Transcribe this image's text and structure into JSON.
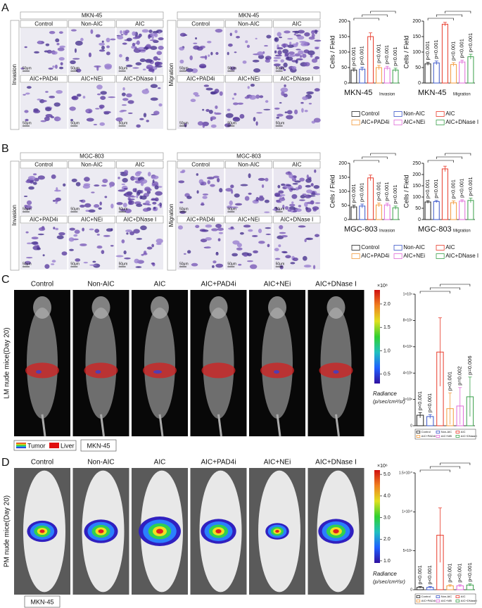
{
  "labels": {
    "groups": [
      "Control",
      "Non-AIC",
      "AIC",
      "AIC+PAD4i",
      "AIC+NEi",
      "AIC+DNase I"
    ],
    "assays": [
      "Invasion",
      "Migration"
    ],
    "scale_bar": "50μm",
    "radiance": "Radiance",
    "radiance_unit": "(p/sec/cm²/sr)"
  },
  "panels": [
    {
      "letter": "A",
      "cell_line": "MKN-45"
    },
    {
      "letter": "B",
      "cell_line": "MGC-803"
    },
    {
      "letter": "C",
      "model": "LM nude mice(Day 20)",
      "cell_line": "MKN-45",
      "tumor": "Tumor",
      "liver": "Liver",
      "colorbar": {
        "scale": "×10⁸",
        "lim": [
          0.3,
          2.3
        ],
        "ticks": [
          0.5,
          {
            "value": 1,
            "label": "1.0"
          },
          1.5,
          {
            "value": 2,
            "label": "2.0"
          }
        ]
      }
    },
    {
      "letter": "D",
      "model": "PM nude mice(Day 20)",
      "cell_line": "MKN-45",
      "colorbar": {
        "scale": "×10⁶",
        "lim": [
          0.9,
          5.2
        ],
        "ticks": [
          {
            "value": 1,
            "label": "1.0"
          },
          {
            "value": 2,
            "label": "2.0"
          },
          {
            "value": 3,
            "label": "3.0"
          },
          {
            "value": 4,
            "label": "4.0"
          },
          {
            "value": 5,
            "label": "5.0"
          }
        ]
      }
    }
  ],
  "chart_data": [
    {
      "type": "bar",
      "ylabel": "Cells / Field",
      "xlabel": "MKN-45",
      "subtitle": "Invasion",
      "categories": [
        "Control",
        "Non-AIC",
        "AIC",
        "AIC+PAD4i",
        "AIC+NEi",
        "AIC+DNase I"
      ],
      "colors": [
        "#222222",
        "#3a55c8",
        "#e83a2a",
        "#f39a3c",
        "#e06ad8",
        "#3aa04a"
      ],
      "values": [
        42,
        45,
        150,
        50,
        48,
        42
      ],
      "errors": [
        6,
        6,
        12,
        7,
        6,
        6
      ],
      "p_labels": [
        "p<0.001",
        "p<0.001",
        null,
        "p<0.001",
        "p<0.001",
        "p<0.001"
      ],
      "ylim": [
        0,
        200
      ],
      "yticks": [
        0,
        50,
        100,
        150,
        200
      ]
    },
    {
      "type": "bar",
      "ylabel": "Cells / Field",
      "xlabel": "MKN-45",
      "subtitle": "Migration",
      "categories": [
        "Control",
        "Non-AIC",
        "AIC",
        "AIC+PAD4i",
        "AIC+NEi",
        "AIC+DNase I"
      ],
      "colors": [
        "#222222",
        "#3a55c8",
        "#e83a2a",
        "#f39a3c",
        "#e06ad8",
        "#3aa04a"
      ],
      "values": [
        62,
        65,
        190,
        60,
        68,
        85
      ],
      "errors": [
        5,
        6,
        6,
        6,
        6,
        8
      ],
      "p_labels": [
        "p<0.001",
        "p<0.001",
        null,
        "p<0.001",
        "p<0.001",
        "p<0.001"
      ],
      "ylim": [
        0,
        200
      ],
      "yticks": [
        0,
        50,
        100,
        150,
        200
      ]
    },
    {
      "type": "bar",
      "ylabel": "Cells / Field",
      "xlabel": "MGC-803",
      "subtitle": "Invasion",
      "categories": [
        "Control",
        "Non-AIC",
        "AIC",
        "AIC+PAD4i",
        "AIC+NEi",
        "AIC+DNase I"
      ],
      "colors": [
        "#222222",
        "#3a55c8",
        "#e83a2a",
        "#f39a3c",
        "#e06ad8",
        "#3aa04a"
      ],
      "values": [
        45,
        48,
        148,
        52,
        52,
        42
      ],
      "errors": [
        6,
        7,
        10,
        7,
        6,
        6
      ],
      "p_labels": [
        "p<0.001",
        "p<0.001",
        null,
        "p<0.001",
        "p<0.001",
        "p<0.001"
      ],
      "ylim": [
        0,
        200
      ],
      "yticks": [
        0,
        50,
        100,
        150,
        200
      ]
    },
    {
      "type": "bar",
      "ylabel": "Cells / Field",
      "xlabel": "MGC-803",
      "subtitle": "Migration",
      "categories": [
        "Control",
        "Non-AIC",
        "AIC",
        "AIC+PAD4i",
        "AIC+NEi",
        "AIC+DNase I"
      ],
      "colors": [
        "#222222",
        "#3a55c8",
        "#e83a2a",
        "#f39a3c",
        "#e06ad8",
        "#3aa04a"
      ],
      "values": [
        78,
        80,
        225,
        75,
        82,
        85
      ],
      "errors": [
        6,
        5,
        12,
        8,
        6,
        10
      ],
      "p_labels": [
        "p<0.001",
        "p<0.001",
        null,
        "p<0.001",
        "p<0.001",
        "p<0.001"
      ],
      "ylim": [
        0,
        250
      ],
      "yticks": [
        0,
        50,
        100,
        150,
        200,
        250
      ]
    },
    {
      "type": "bar",
      "categories": [
        "Control",
        "Non-AIC",
        "AIC",
        "AIC+PAD4i",
        "AIC+NEi",
        "AIC+DNase I"
      ],
      "colors": [
        "#222222",
        "#3a55c8",
        "#e83a2a",
        "#f39a3c",
        "#e06ad8",
        "#3aa04a"
      ],
      "values": [
        80000000,
        70000000,
        560000000,
        130000000,
        150000000,
        220000000
      ],
      "errors": [
        20000000,
        15000000,
        260000000,
        120000000,
        140000000,
        150000000
      ],
      "p_labels": [
        "p<0.001",
        "p<0.001",
        null,
        "p<0.001",
        "p=0.002",
        "p=0.006"
      ],
      "ylim": [
        0,
        1000000000
      ],
      "yticks": [
        0,
        {
          "value": 200000000,
          "label": "2×10⁸"
        },
        {
          "value": 400000000,
          "label": "4×10⁸"
        },
        {
          "value": 600000000,
          "label": "6×10⁸"
        },
        {
          "value": 800000000,
          "label": "8×10⁸"
        },
        {
          "value": 1000000000,
          "label": "1×10⁹"
        }
      ]
    },
    {
      "type": "bar",
      "categories": [
        "Control",
        "Non-AIC",
        "AIC",
        "AIC+PAD4i",
        "AIC+NEi",
        "AIC+DNase I"
      ],
      "colors": [
        "#222222",
        "#3a55c8",
        "#e83a2a",
        "#f39a3c",
        "#e06ad8",
        "#3aa04a"
      ],
      "values": [
        300000000,
        300000000,
        7000000000,
        500000000,
        500000000,
        600000000
      ],
      "errors": [
        100000000,
        100000000,
        3500000000,
        150000000,
        150000000,
        150000000
      ],
      "p_labels": [
        "p<0.001",
        "p<0.001",
        null,
        "p<0.001",
        "p<0.001",
        "p<0.001"
      ],
      "ylim": [
        0,
        15000000000
      ],
      "yticks": [
        0,
        {
          "value": 5000000000,
          "label": "5×10⁹"
        },
        {
          "value": 10000000000,
          "label": "1×10¹⁰"
        },
        {
          "value": 15000000000,
          "label": "1.5×10¹⁰"
        }
      ]
    }
  ]
}
